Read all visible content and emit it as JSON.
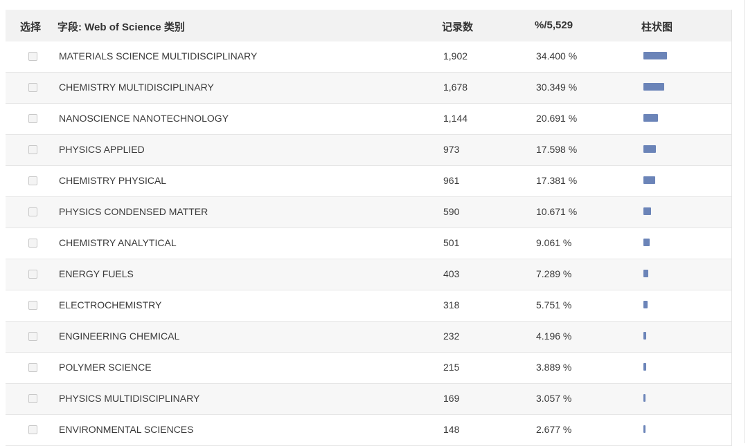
{
  "header": {
    "select": "选择",
    "field": "字段: Web of Science 类别",
    "count": "记录数",
    "percent": "%/5,529",
    "bar": "柱状图"
  },
  "colors": {
    "bar": "#6b84b8",
    "header_bg": "#f2f2f2",
    "alt_row_bg": "#f7f7f7"
  },
  "rows": [
    {
      "category": "MATERIALS SCIENCE MULTIDISCIPLINARY",
      "count": "1,902",
      "percent": "34.400 %",
      "share": 34.4
    },
    {
      "category": "CHEMISTRY MULTIDISCIPLINARY",
      "count": "1,678",
      "percent": "30.349 %",
      "share": 30.349
    },
    {
      "category": "NANOSCIENCE NANOTECHNOLOGY",
      "count": "1,144",
      "percent": "20.691 %",
      "share": 20.691
    },
    {
      "category": "PHYSICS APPLIED",
      "count": "973",
      "percent": "17.598 %",
      "share": 17.598
    },
    {
      "category": "CHEMISTRY PHYSICAL",
      "count": "961",
      "percent": "17.381 %",
      "share": 17.381
    },
    {
      "category": "PHYSICS CONDENSED MATTER",
      "count": "590",
      "percent": "10.671 %",
      "share": 10.671
    },
    {
      "category": "CHEMISTRY ANALYTICAL",
      "count": "501",
      "percent": "9.061 %",
      "share": 9.061
    },
    {
      "category": "ENERGY FUELS",
      "count": "403",
      "percent": "7.289 %",
      "share": 7.289
    },
    {
      "category": "ELECTROCHEMISTRY",
      "count": "318",
      "percent": "5.751 %",
      "share": 5.751
    },
    {
      "category": "ENGINEERING CHEMICAL",
      "count": "232",
      "percent": "4.196 %",
      "share": 4.196
    },
    {
      "category": "POLYMER SCIENCE",
      "count": "215",
      "percent": "3.889 %",
      "share": 3.889
    },
    {
      "category": "PHYSICS MULTIDISCIPLINARY",
      "count": "169",
      "percent": "3.057 %",
      "share": 3.057
    },
    {
      "category": "ENVIRONMENTAL SCIENCES",
      "count": "148",
      "percent": "2.677 %",
      "share": 2.677
    }
  ]
}
